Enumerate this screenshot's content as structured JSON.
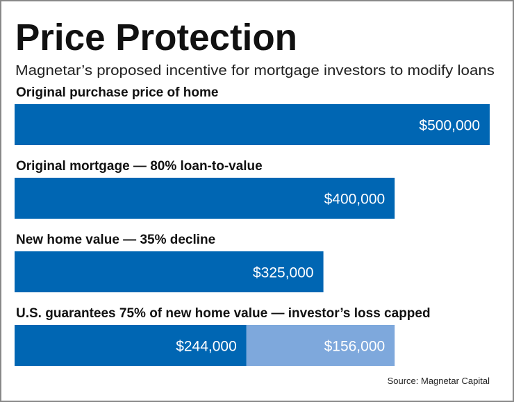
{
  "chart_data": {
    "type": "bar",
    "orientation": "horizontal",
    "stacked": true,
    "title": "Price Protection",
    "subtitle": "Magnetar’s proposed incentive for mortgage investors to modify loans",
    "source": "Source: Magnetar Capital",
    "categories": [
      "Original purchase price of home",
      "Original mortgage — 80% loan-to-value",
      "New home value — 35% decline",
      "U.S. guarantees 75% of new home value — investor’s loss capped"
    ],
    "series": [
      {
        "color": "#0066b3",
        "values": [
          500000,
          400000,
          325000,
          244000
        ],
        "value_labels": [
          "$500,000",
          "$400,000",
          "$325,000",
          "$244,000"
        ]
      },
      {
        "color": "#7ea8dc",
        "values": [
          null,
          null,
          null,
          156000
        ],
        "value_labels": [
          null,
          null,
          null,
          "$156,000"
        ]
      }
    ]
  }
}
